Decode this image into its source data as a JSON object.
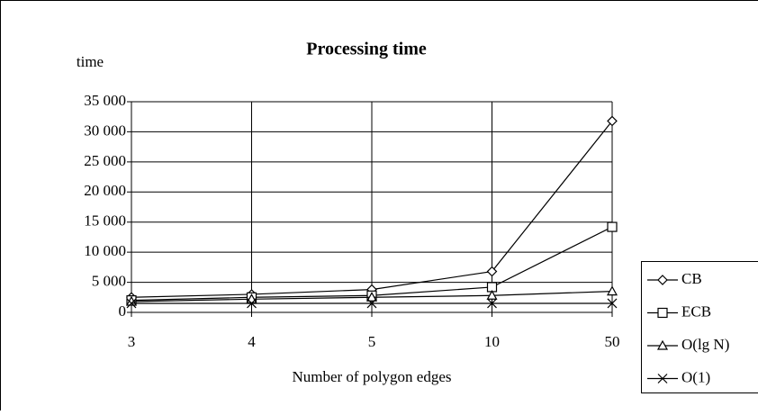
{
  "chart_data": {
    "type": "line",
    "title": "Processing time",
    "y_label": "time",
    "x_label": "Number of polygon edges",
    "categories": [
      "3",
      "4",
      "5",
      "10",
      "50"
    ],
    "series": [
      {
        "name": "CB",
        "color": "#000000",
        "marker": "diamond",
        "values": [
          2500,
          3000,
          3800,
          6800,
          31800
        ]
      },
      {
        "name": "ECB",
        "color": "#000000",
        "marker": "square",
        "values": [
          2000,
          2500,
          2800,
          4200,
          14200
        ]
      },
      {
        "name": "O(lg N)",
        "color": "#000000",
        "marker": "triangle",
        "values": [
          1800,
          2200,
          2500,
          2800,
          3500
        ]
      },
      {
        "name": "O(1)",
        "color": "#000000",
        "marker": "x",
        "values": [
          1500,
          1500,
          1500,
          1500,
          1500
        ]
      }
    ],
    "ylim": [
      0,
      35000
    ],
    "yticks": [
      0,
      {
        "value": 5000,
        "label": "5 000"
      },
      {
        "value": 10000,
        "label": "10 000"
      },
      {
        "value": 15000,
        "label": "15 000"
      },
      {
        "value": 20000,
        "label": "20 000"
      },
      {
        "value": 25000,
        "label": "25 000"
      },
      {
        "value": 30000,
        "label": "30 000"
      },
      {
        "value": 35000,
        "label": "35 000"
      }
    ],
    "grid": true,
    "legend": "right"
  }
}
